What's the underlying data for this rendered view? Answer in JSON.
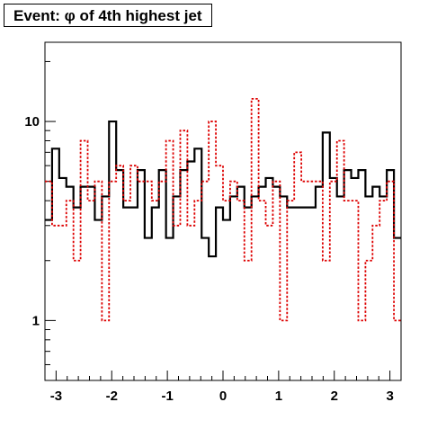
{
  "chart_data": {
    "type": "histogram",
    "title": "Event: φ of 4th highest jet",
    "xlabel": "",
    "ylabel": "",
    "xlim": [
      -3.2,
      3.2
    ],
    "ylim": [
      0.5,
      25
    ],
    "yscale": "log",
    "grid": false,
    "legend": "none",
    "x_ticks": [
      {
        "value": -3,
        "label": "-3"
      },
      {
        "value": -2,
        "label": "-2"
      },
      {
        "value": -1,
        "label": "-1"
      },
      {
        "value": 0,
        "label": "0"
      },
      {
        "value": 1,
        "label": "1"
      },
      {
        "value": 2,
        "label": "2"
      },
      {
        "value": 3,
        "label": "3"
      }
    ],
    "y_ticks": [
      {
        "value": 1,
        "label": "1"
      },
      {
        "value": 10,
        "label": "10"
      }
    ],
    "bin_edges": [
      -3.2,
      3.2
    ],
    "n_bins": 50,
    "series": [
      {
        "style": "solid",
        "color": "#000000",
        "values": [
          3.2,
          7.3,
          5.2,
          4.7,
          3.7,
          4.7,
          4.7,
          3.2,
          4.2,
          10.0,
          5.7,
          3.7,
          3.7,
          5.7,
          2.6,
          3.7,
          5.7,
          2.6,
          4.2,
          5.7,
          6.3,
          7.3,
          2.6,
          2.1,
          3.7,
          3.2,
          4.2,
          4.7,
          3.7,
          4.2,
          4.7,
          5.2,
          4.7,
          4.2,
          3.7,
          3.7,
          3.7,
          3.7,
          4.7,
          8.8,
          5.2,
          4.2,
          5.7,
          5.2,
          5.7,
          4.2,
          4.7,
          4.2,
          5.7,
          2.6
        ]
      },
      {
        "style": "dotted",
        "color": "#dd0000",
        "values": [
          5.0,
          3.0,
          3.0,
          4.0,
          2.0,
          8.0,
          4.0,
          5.0,
          1.0,
          5.0,
          6.0,
          4.0,
          6.0,
          5.0,
          5.0,
          4.0,
          5.0,
          8.0,
          3.0,
          9.0,
          3.0,
          4.0,
          5.0,
          10.0,
          6.0,
          4.0,
          5.0,
          4.0,
          2.0,
          13.0,
          4.0,
          3.0,
          5.0,
          1.0,
          4.0,
          7.0,
          5.0,
          5.0,
          5.0,
          2.0,
          5.0,
          8.0,
          4.0,
          4.0,
          1.0,
          2.0,
          3.0,
          4.0,
          5.0,
          1.0
        ]
      }
    ]
  }
}
